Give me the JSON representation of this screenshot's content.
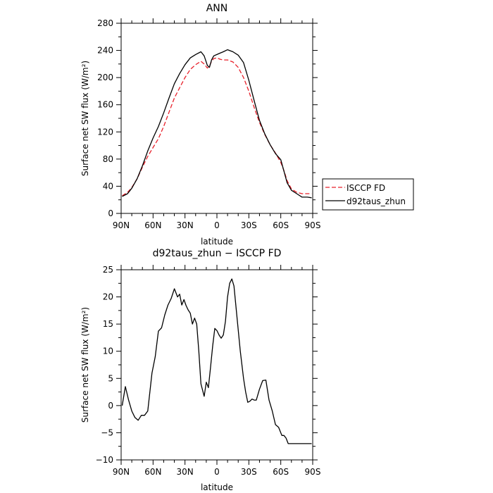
{
  "chart_data": [
    {
      "type": "line",
      "title": "ANN",
      "xlabel": "latitude",
      "ylabel": "Surface net SW flux (W/m²)",
      "xlim": [
        90,
        -90
      ],
      "ylim": [
        0,
        280
      ],
      "x_ticks": [
        90,
        60,
        30,
        0,
        -30,
        -60,
        -90
      ],
      "x_tick_labels": [
        "90N",
        "60N",
        "30N",
        "0",
        "30S",
        "60S",
        "90S"
      ],
      "y_ticks": [
        0,
        40,
        80,
        120,
        160,
        200,
        240,
        280
      ],
      "y_tick_labels": [
        "0",
        "40",
        "80",
        "120",
        "160",
        "200",
        "240",
        "280"
      ],
      "legend_position": "right",
      "series": [
        {
          "name": "ISCCP FD",
          "color": "#e8202a",
          "dash": "dashed",
          "x": [
            89,
            84,
            80,
            75,
            70,
            65,
            60,
            55,
            50,
            45,
            40,
            35,
            30,
            25,
            20,
            15,
            12,
            9,
            7,
            5,
            3,
            0,
            -3,
            -6,
            -10,
            -15,
            -20,
            -25,
            -30,
            -35,
            -40,
            -45,
            -50,
            -55,
            -60,
            -63,
            -66,
            -70,
            -75,
            -80,
            -85,
            -89
          ],
          "y": [
            26,
            31,
            38,
            51,
            68,
            84,
            97,
            110,
            128,
            149,
            170,
            185,
            200,
            212,
            219,
            224,
            220,
            214,
            217,
            224,
            228,
            229,
            227,
            226,
            226,
            223,
            215,
            200,
            180,
            156,
            134,
            116,
            101,
            89,
            75,
            63,
            48,
            36,
            31,
            29,
            29,
            29
          ]
        },
        {
          "name": "d92taus_zhun",
          "color": "#000000",
          "dash": "solid",
          "x": [
            89,
            84,
            80,
            75,
            70,
            65,
            60,
            55,
            50,
            45,
            40,
            35,
            30,
            25,
            20,
            15,
            12,
            9,
            7,
            5,
            3,
            0,
            -3,
            -6,
            -10,
            -15,
            -20,
            -25,
            -30,
            -35,
            -40,
            -45,
            -50,
            -55,
            -60,
            -63,
            -66,
            -70,
            -75,
            -80,
            -85,
            -89
          ],
          "y": [
            25,
            29,
            37,
            51,
            70,
            92,
            111,
            128,
            148,
            170,
            191,
            206,
            219,
            229,
            234,
            238,
            232,
            218,
            215,
            226,
            232,
            234,
            236,
            238,
            241,
            238,
            233,
            222,
            196,
            166,
            137,
            117,
            101,
            88,
            79,
            62,
            45,
            34,
            29,
            24,
            24,
            23
          ]
        }
      ]
    },
    {
      "type": "line",
      "title": "d92taus_zhun − ISCCP FD",
      "xlabel": "latitude",
      "ylabel": "Surface net SW flux (W/m²)",
      "xlim": [
        90,
        -90
      ],
      "ylim": [
        -10,
        25
      ],
      "x_ticks": [
        90,
        60,
        30,
        0,
        -30,
        -60,
        -90
      ],
      "x_tick_labels": [
        "90N",
        "60N",
        "30N",
        "0",
        "30S",
        "60S",
        "90S"
      ],
      "y_ticks": [
        -10,
        -5,
        0,
        5,
        10,
        15,
        20,
        25
      ],
      "y_tick_labels": [
        "−10",
        "−5",
        "0",
        "5",
        "10",
        "15",
        "20",
        "25"
      ],
      "series": [
        {
          "color": "#000000",
          "dash": "solid",
          "x": [
            89,
            86,
            83,
            80,
            77,
            74,
            71,
            68,
            65,
            61,
            58,
            55,
            52,
            49,
            46,
            43,
            40,
            37,
            35,
            33,
            31,
            29,
            27,
            25,
            23,
            21,
            19,
            17,
            15,
            12,
            10,
            8,
            6,
            4,
            2,
            0,
            -2,
            -4,
            -6,
            -8,
            -10,
            -12,
            -14,
            -16,
            -18,
            -20,
            -22,
            -25,
            -27,
            -29,
            -31,
            -33,
            -35,
            -37,
            -40,
            -43,
            -46,
            -49,
            -52,
            -55,
            -58,
            -61,
            -63,
            -65,
            -67,
            -69,
            -71,
            -74,
            -77,
            -80,
            -83,
            -86,
            -89
          ],
          "y": [
            0,
            3.5,
            1,
            -1,
            -2.2,
            -2.7,
            -1.8,
            -1.8,
            -1,
            6,
            9,
            13.7,
            14.3,
            16.7,
            18.5,
            19.7,
            21.5,
            20,
            20.5,
            18.5,
            19.5,
            18.4,
            17.6,
            17,
            15,
            16.1,
            15,
            10,
            4,
            1.7,
            4.3,
            3.3,
            7,
            11,
            14.2,
            13.8,
            13,
            12.4,
            13,
            15.5,
            20,
            22.5,
            23.3,
            22,
            18,
            14,
            10,
            5,
            2.5,
            0.6,
            0.8,
            1.2,
            1,
            1,
            3,
            4.6,
            4.7,
            1,
            -1,
            -3.5,
            -4,
            -5.5,
            -5.5,
            -6,
            -7,
            -7,
            -7,
            -7,
            -7,
            -7,
            -7,
            -7,
            -7
          ]
        }
      ]
    }
  ]
}
